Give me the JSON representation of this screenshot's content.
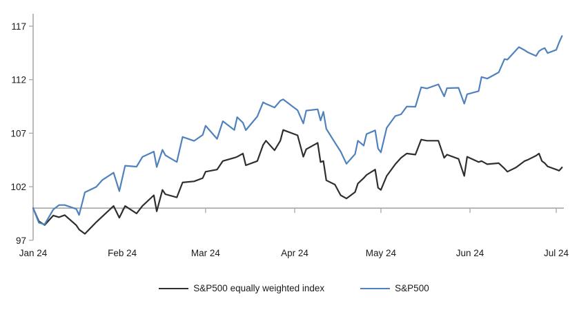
{
  "chart": {
    "legend": {
      "items": [
        {
          "label": "S&P500 equally weighted index",
          "series_key": "equal_weight"
        },
        {
          "label": "S&P500",
          "series_key": "sp500"
        }
      ]
    },
    "colors": {
      "sp500_line": "#4f81bd",
      "equal_weight_line": "#2e2e2e",
      "axis_gray": "#a6a6a6",
      "label_text": "#1a1a1a",
      "background": "#ffffff"
    }
  },
  "chart_data": {
    "type": "line",
    "title": "",
    "xlabel": "",
    "ylabel": "",
    "x_tick_labels": [
      "Jan 24",
      "Feb 24",
      "Mar 24",
      "Apr 24",
      "May 24",
      "Jun 24",
      "Jul 24"
    ],
    "y_tick_labels": [
      "97",
      "102",
      "107",
      "112",
      "117"
    ],
    "y_ticks": [
      97,
      102,
      107,
      112,
      117
    ],
    "ylim": [
      97,
      117.8
    ],
    "baseline_value": 100,
    "grid": "off",
    "legend_position": "bottom-center",
    "dates": [
      "2024-01-01",
      "2024-01-03",
      "2024-01-05",
      "2024-01-08",
      "2024-01-10",
      "2024-01-12",
      "2024-01-16",
      "2024-01-17",
      "2024-01-19",
      "2024-01-23",
      "2024-01-25",
      "2024-01-29",
      "2024-01-31",
      "2024-02-02",
      "2024-02-06",
      "2024-02-08",
      "2024-02-12",
      "2024-02-13",
      "2024-02-15",
      "2024-02-16",
      "2024-02-20",
      "2024-02-22",
      "2024-02-26",
      "2024-02-29",
      "2024-03-01",
      "2024-03-05",
      "2024-03-07",
      "2024-03-11",
      "2024-03-12",
      "2024-03-14",
      "2024-03-15",
      "2024-03-19",
      "2024-03-21",
      "2024-03-22",
      "2024-03-25",
      "2024-03-27",
      "2024-03-28",
      "2024-04-02",
      "2024-04-04",
      "2024-04-05",
      "2024-04-09",
      "2024-04-10",
      "2024-04-11",
      "2024-04-12",
      "2024-04-15",
      "2024-04-17",
      "2024-04-19",
      "2024-04-22",
      "2024-04-23",
      "2024-04-25",
      "2024-04-26",
      "2024-04-29",
      "2024-04-30",
      "2024-05-01",
      "2024-05-03",
      "2024-05-06",
      "2024-05-08",
      "2024-05-10",
      "2024-05-13",
      "2024-05-15",
      "2024-05-17",
      "2024-05-21",
      "2024-05-23",
      "2024-05-24",
      "2024-05-28",
      "2024-05-30",
      "2024-05-31",
      "2024-06-04",
      "2024-06-05",
      "2024-06-07",
      "2024-06-11",
      "2024-06-13",
      "2024-06-14",
      "2024-06-17",
      "2024-06-18",
      "2024-06-20",
      "2024-06-21",
      "2024-06-24",
      "2024-06-25",
      "2024-06-26",
      "2024-06-27",
      "2024-06-28",
      "2024-07-01",
      "2024-07-02",
      "2024-07-03"
    ],
    "series": [
      {
        "name": "S&P500 equally weighted index",
        "color": "#2e2e2e",
        "values": [
          100.0,
          98.77,
          98.42,
          99.31,
          99.15,
          99.35,
          98.4,
          98.0,
          97.6,
          98.7,
          99.2,
          100.2,
          99.1,
          100.2,
          99.5,
          100.2,
          101.2,
          99.7,
          101.7,
          101.3,
          101.0,
          102.4,
          102.5,
          102.8,
          103.4,
          103.6,
          104.4,
          104.7,
          104.8,
          105.1,
          104.0,
          104.4,
          105.9,
          106.3,
          105.4,
          106.3,
          107.3,
          106.8,
          104.8,
          105.5,
          106.1,
          104.3,
          104.4,
          102.6,
          102.2,
          101.2,
          100.9,
          101.5,
          102.3,
          102.8,
          103.1,
          103.6,
          101.9,
          101.7,
          103.0,
          104.1,
          104.7,
          105.1,
          105.0,
          106.4,
          106.3,
          106.3,
          104.7,
          105.0,
          104.6,
          103.0,
          104.8,
          104.3,
          104.4,
          104.1,
          104.2,
          103.7,
          103.4,
          103.8,
          104.0,
          104.4,
          104.5,
          104.9,
          105.1,
          104.4,
          104.2,
          103.9,
          103.6,
          103.5,
          103.8
        ]
      },
      {
        "name": "S&P500",
        "color": "#4f81bd",
        "values": [
          100.0,
          98.64,
          98.48,
          99.87,
          100.29,
          100.29,
          99.92,
          99.36,
          101.47,
          101.99,
          102.61,
          103.31,
          101.59,
          103.96,
          103.87,
          104.78,
          105.28,
          103.84,
          105.45,
          104.94,
          104.31,
          106.65,
          106.28,
          106.84,
          107.7,
          106.47,
          108.12,
          107.3,
          108.5,
          107.98,
          107.28,
          108.57,
          109.89,
          109.74,
          109.4,
          110.03,
          110.16,
          109.14,
          107.91,
          109.11,
          109.23,
          108.19,
          109.0,
          107.41,
          106.12,
          105.29,
          104.14,
          105.05,
          106.3,
          105.84,
          106.92,
          107.26,
          105.57,
          105.21,
          107.5,
          108.61,
          108.76,
          109.49,
          109.47,
          111.29,
          111.18,
          111.56,
          110.44,
          111.21,
          111.24,
          109.76,
          110.64,
          110.93,
          112.25,
          112.1,
          112.69,
          113.92,
          113.87,
          114.75,
          115.04,
          114.75,
          114.57,
          114.22,
          114.66,
          114.84,
          114.95,
          114.48,
          114.79,
          115.49,
          116.08
        ]
      }
    ]
  }
}
